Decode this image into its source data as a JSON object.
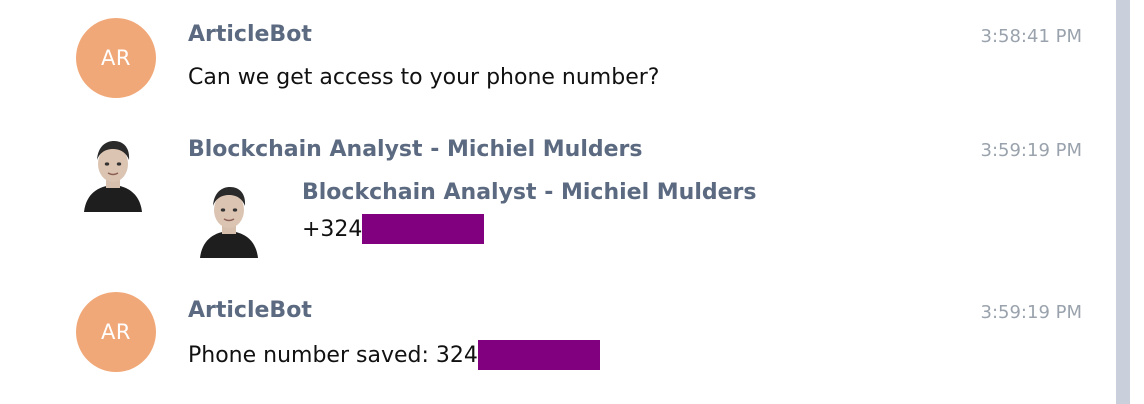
{
  "colors": {
    "bot_avatar": "#f1a878",
    "sender_name": "#5b6a80",
    "timestamp": "#9aa3ad",
    "redaction": "#800080",
    "scrollbar": "#c9d0dc"
  },
  "messages": [
    {
      "avatar_initials": "AR",
      "sender": "ArticleBot",
      "time": "3:58:41 PM",
      "text": "Can we get access to your phone number?"
    },
    {
      "avatar_icon": "person-photo-icon",
      "sender": "Blockchain Analyst - Michiel Mulders",
      "time": "3:59:19 PM",
      "contact": {
        "avatar_icon": "person-photo-icon",
        "name": "Blockchain Analyst - Michiel Mulders",
        "phone_prefix": "+324"
      }
    },
    {
      "avatar_initials": "AR",
      "sender": "ArticleBot",
      "time": "3:59:19 PM",
      "text_prefix": "Phone number saved: 324"
    }
  ]
}
